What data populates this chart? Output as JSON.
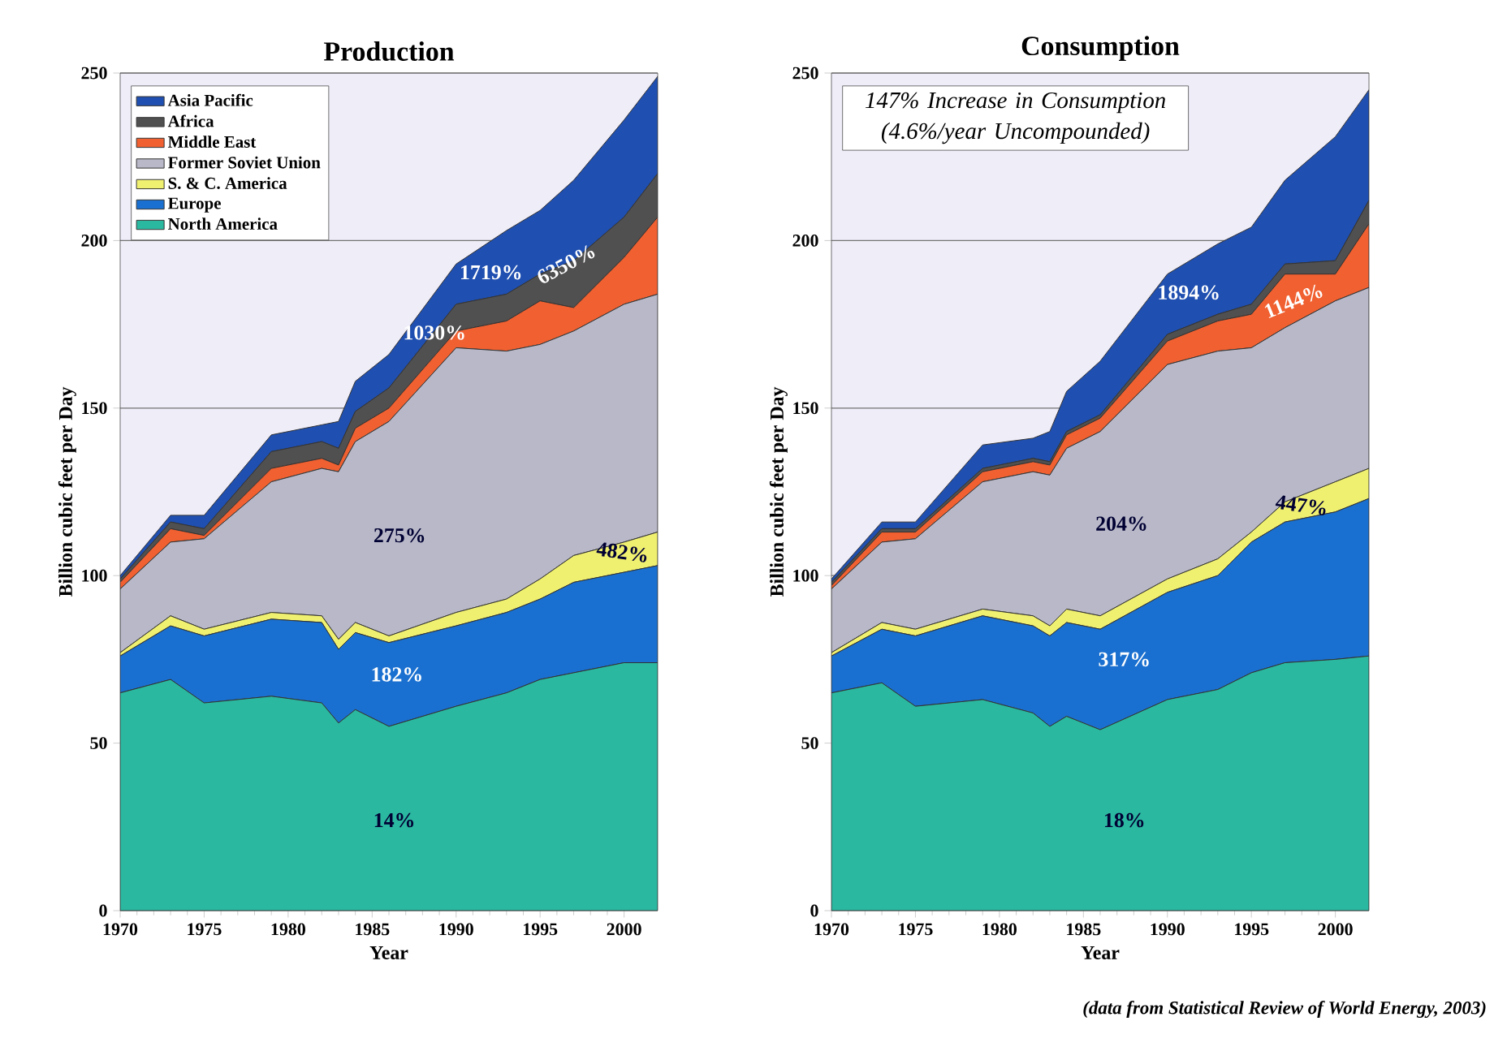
{
  "chart_data": [
    {
      "type": "area",
      "title": "Production",
      "xlabel": "Year",
      "ylabel": "Billion cubic feet per Day",
      "stacked": true,
      "grid": "y",
      "legend": "top left",
      "x": [
        1970,
        1973,
        1975,
        1979,
        1982,
        1983,
        1984,
        1986,
        1990,
        1993,
        1995,
        1997,
        2000,
        2002
      ],
      "xlim": [
        1970,
        2002
      ],
      "xticks": [
        1970,
        1975,
        1980,
        1985,
        1990,
        1995,
        2000
      ],
      "ylim": [
        0,
        250
      ],
      "yticks": [
        0,
        50,
        100,
        150,
        200,
        250
      ],
      "series": [
        {
          "name": "North America",
          "color": "#2ab8a0",
          "values": [
            65,
            69,
            62,
            64,
            62,
            56,
            60,
            55,
            61,
            65,
            69,
            71,
            74,
            74
          ]
        },
        {
          "name": "Europe",
          "color": "#1a70d0",
          "values": [
            11,
            16,
            20,
            23,
            24,
            22,
            23,
            25,
            24,
            24,
            24,
            27,
            27,
            29
          ]
        },
        {
          "name": "S. & C. America",
          "color": "#f0f070",
          "values": [
            1,
            3,
            2,
            2,
            2,
            3,
            3,
            2,
            4,
            4,
            6,
            8,
            9,
            10
          ]
        },
        {
          "name": "Former Soviet Union",
          "color": "#b8b8c8",
          "values": [
            19,
            22,
            27,
            39,
            44,
            50,
            54,
            64,
            79,
            74,
            70,
            67,
            71,
            71
          ]
        },
        {
          "name": "Middle East",
          "color": "#f06030",
          "values": [
            2,
            4,
            1,
            4,
            3,
            2,
            4,
            4,
            5,
            9,
            13,
            7,
            14,
            23
          ]
        },
        {
          "name": "Africa",
          "color": "#505050",
          "values": [
            1,
            2,
            2,
            5,
            5,
            5,
            5,
            6,
            8,
            8,
            8,
            14,
            12,
            13
          ]
        },
        {
          "name": "Asia Pacific",
          "color": "#1f4fb0",
          "values": [
            1,
            2,
            4,
            5,
            5,
            8,
            9,
            10,
            12,
            19,
            19,
            24,
            29,
            29
          ]
        }
      ],
      "annotations": [
        "1719%",
        "6350%",
        "1030%",
        "275%",
        "482%",
        "182%",
        "14%"
      ]
    },
    {
      "type": "area",
      "title": "Consumption",
      "xlabel": "Year",
      "ylabel": "Billion cubic feet per Day",
      "stacked": true,
      "grid": "y",
      "x": [
        1970,
        1973,
        1975,
        1979,
        1982,
        1983,
        1984,
        1986,
        1990,
        1993,
        1995,
        1997,
        2000,
        2002
      ],
      "xlim": [
        1970,
        2002
      ],
      "xticks": [
        1970,
        1975,
        1980,
        1985,
        1990,
        1995,
        2000
      ],
      "ylim": [
        0,
        250
      ],
      "yticks": [
        0,
        50,
        100,
        150,
        200,
        250
      ],
      "series": [
        {
          "color": "#2ab8a0",
          "values": [
            65,
            68,
            61,
            63,
            59,
            55,
            58,
            54,
            63,
            66,
            71,
            74,
            75,
            76
          ]
        },
        {
          "color": "#1a70d0",
          "values": [
            11,
            16,
            21,
            25,
            26,
            27,
            28,
            30,
            32,
            34,
            39,
            42,
            44,
            47
          ]
        },
        {
          "color": "#f0f070",
          "values": [
            1,
            2,
            2,
            2,
            3,
            3,
            4,
            4,
            4,
            5,
            3,
            6,
            9,
            9
          ]
        },
        {
          "color": "#b8b8c8",
          "values": [
            19,
            24,
            27,
            38,
            43,
            45,
            48,
            55,
            64,
            62,
            55,
            52,
            54,
            54
          ]
        },
        {
          "color": "#f06030",
          "values": [
            1,
            3,
            2,
            3,
            3,
            3,
            4,
            4,
            7,
            9,
            10,
            16,
            8,
            19
          ]
        },
        {
          "color": "#505050",
          "values": [
            1,
            1,
            1,
            1,
            1,
            1,
            1,
            1,
            2,
            2,
            3,
            3,
            4,
            7
          ]
        },
        {
          "color": "#1f4fb0",
          "values": [
            1,
            2,
            2,
            7,
            6,
            9,
            12,
            16,
            18,
            21,
            23,
            25,
            37,
            33
          ]
        }
      ],
      "annotations": [
        "147% Increase in Consumption (4.6%/year Uncompounded)",
        "1894%",
        "1144%",
        "204%",
        "447%",
        "317%",
        "18%",
        "(data from Statistical Review of World Energy, 2003)"
      ]
    }
  ]
}
